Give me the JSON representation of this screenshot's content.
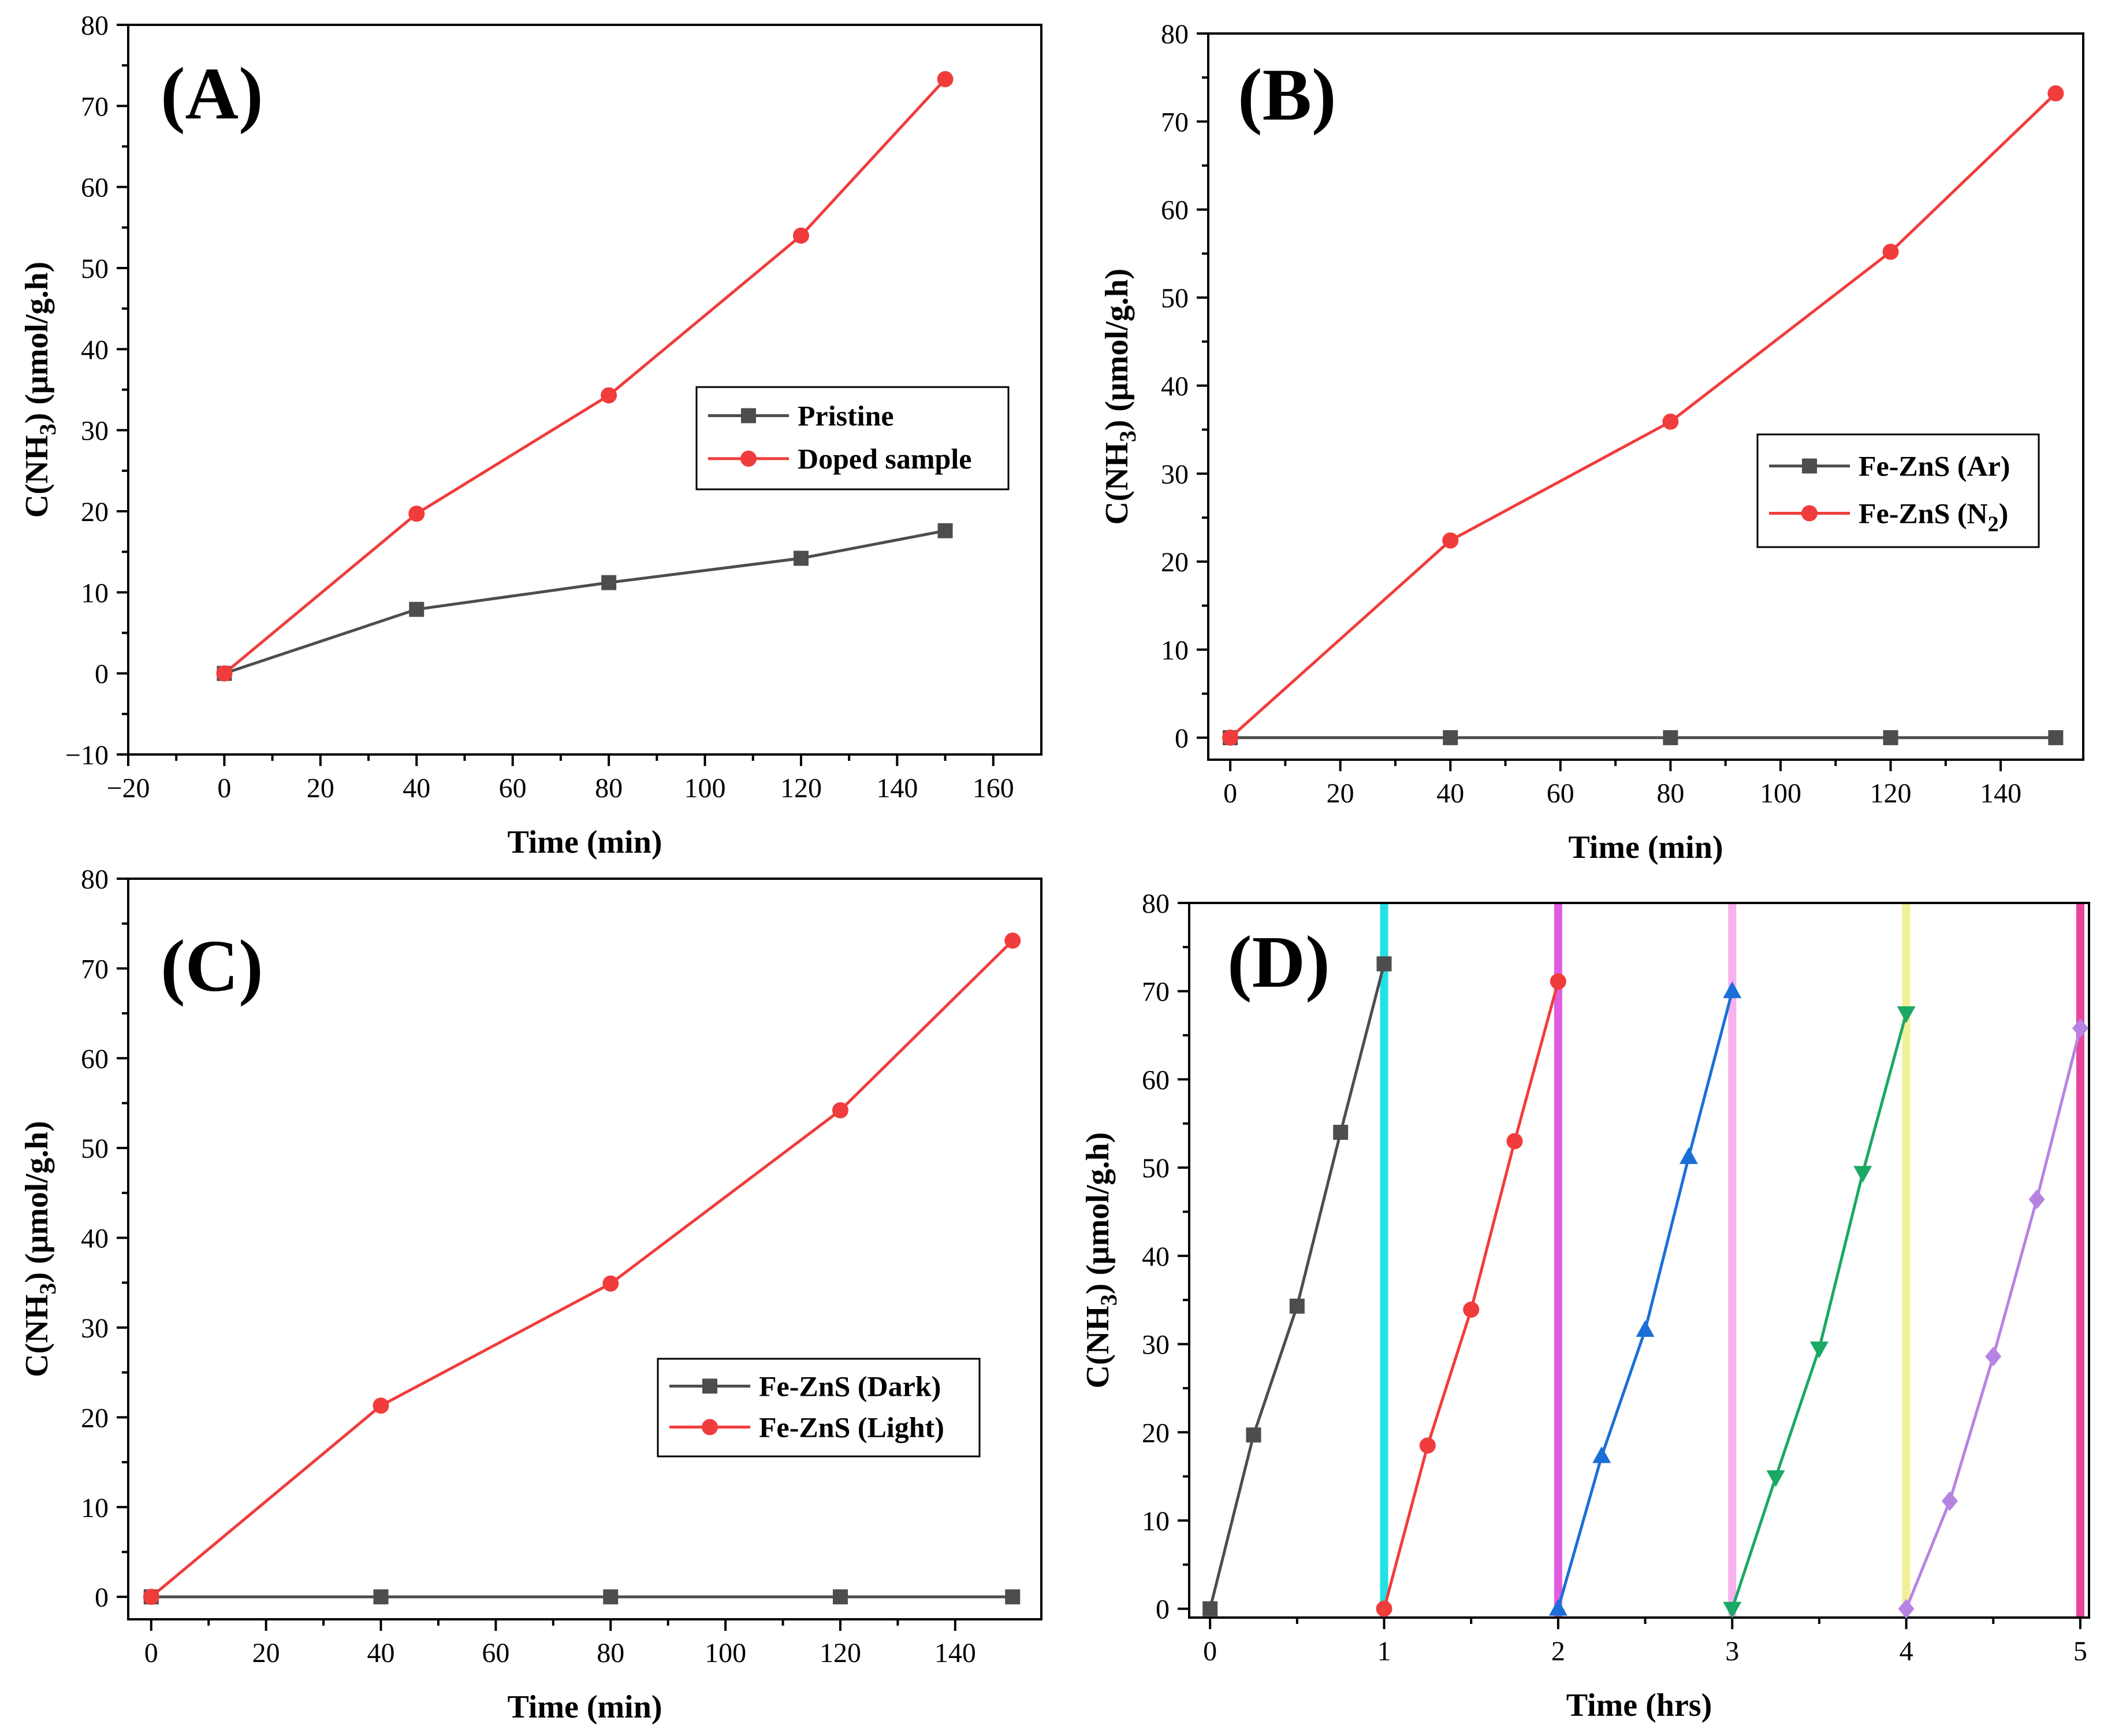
{
  "chart_data": [
    {
      "id": "A",
      "type": "line",
      "panel_label": "(A)",
      "xlabel": "Time (min)",
      "ylabel": "C(NH3) (μmol/g.h)",
      "ylabel_main": "C(NH",
      "ylabel_sub": "3",
      "ylabel_rest": ") (μmol/g.h)",
      "xlim": [
        -20,
        170
      ],
      "ylim": [
        -10,
        80
      ],
      "xticks": [
        -20,
        0,
        20,
        40,
        60,
        80,
        100,
        120,
        140,
        160
      ],
      "xtick_labels": [
        "−20",
        "0",
        "20",
        "40",
        "60",
        "80",
        "100",
        "120",
        "140",
        "160"
      ],
      "yticks": [
        -10,
        0,
        10,
        20,
        30,
        40,
        50,
        60,
        70,
        80
      ],
      "ytick_labels": [
        "−10",
        "0",
        "10",
        "20",
        "30",
        "40",
        "50",
        "60",
        "70",
        "80"
      ],
      "legend_position": "middle-right",
      "series": [
        {
          "name": "Pristine",
          "name_main": "Pristine",
          "name_sub": "",
          "name_rest": "",
          "color": "#4d4d4d",
          "marker": "square",
          "x": [
            0,
            40,
            80,
            120,
            150
          ],
          "y": [
            0,
            7.9,
            11.2,
            14.2,
            17.6
          ]
        },
        {
          "name": "Doped sample",
          "name_main": "Doped sample",
          "name_sub": "",
          "name_rest": "",
          "color": "#f03c3c",
          "marker": "circle",
          "x": [
            0,
            40,
            80,
            120,
            150
          ],
          "y": [
            0,
            19.7,
            34.3,
            54.0,
            73.3
          ]
        }
      ]
    },
    {
      "id": "B",
      "type": "line",
      "panel_label": "(B)",
      "xlabel": "Time (min)",
      "ylabel": "C(NH3) (μmol/g.h)",
      "ylabel_main": "C(NH",
      "ylabel_sub": "3",
      "ylabel_rest": ") (μmol/g.h)",
      "xlim": [
        -4,
        155
      ],
      "ylim": [
        -2.5,
        80
      ],
      "xticks": [
        0,
        20,
        40,
        60,
        80,
        100,
        120,
        140
      ],
      "xtick_labels": [
        "0",
        "20",
        "40",
        "60",
        "80",
        "100",
        "120",
        "140"
      ],
      "yticks": [
        0,
        10,
        20,
        30,
        40,
        50,
        60,
        70,
        80
      ],
      "ytick_labels": [
        "0",
        "10",
        "20",
        "30",
        "40",
        "50",
        "60",
        "70",
        "80"
      ],
      "legend_position": "middle-right",
      "series": [
        {
          "name": "Fe-ZnS (Ar)",
          "name_main": "Fe-ZnS (Ar)",
          "name_sub": "",
          "name_rest": "",
          "color": "#4d4d4d",
          "marker": "square",
          "x": [
            0,
            40,
            80,
            120,
            150
          ],
          "y": [
            0,
            0,
            0,
            0,
            0
          ]
        },
        {
          "name": "Fe-ZnS (N2)",
          "name_main": "Fe-ZnS (N",
          "name_sub": "2",
          "name_rest": ")",
          "color": "#f03c3c",
          "marker": "circle",
          "x": [
            0,
            40,
            80,
            120,
            150
          ],
          "y": [
            0,
            22.4,
            35.9,
            55.2,
            73.2
          ]
        }
      ]
    },
    {
      "id": "C",
      "type": "line",
      "panel_label": "(C)",
      "xlabel": "Time (min)",
      "ylabel": "C(NH3) (μmol/g.h)",
      "ylabel_main": "C(NH",
      "ylabel_sub": "3",
      "ylabel_rest": ") (μmol/g.h)",
      "xlim": [
        -4,
        155
      ],
      "ylim": [
        -2.5,
        80
      ],
      "xticks": [
        0,
        20,
        40,
        60,
        80,
        100,
        120,
        140
      ],
      "xtick_labels": [
        "0",
        "20",
        "40",
        "60",
        "80",
        "100",
        "120",
        "140"
      ],
      "yticks": [
        0,
        10,
        20,
        30,
        40,
        50,
        60,
        70,
        80
      ],
      "ytick_labels": [
        "0",
        "10",
        "20",
        "30",
        "40",
        "50",
        "60",
        "70",
        "80"
      ],
      "legend_position": "lower-right",
      "series": [
        {
          "name": "Fe-ZnS (Dark)",
          "name_main": "Fe-ZnS (Dark)",
          "name_sub": "",
          "name_rest": "",
          "color": "#4d4d4d",
          "marker": "square",
          "x": [
            0,
            40,
            80,
            120,
            150
          ],
          "y": [
            0,
            0,
            0,
            0,
            0
          ]
        },
        {
          "name": "Fe-ZnS (Light)",
          "name_main": "Fe-ZnS (Light)",
          "name_sub": "",
          "name_rest": "",
          "color": "#f03c3c",
          "marker": "circle",
          "x": [
            0,
            40,
            80,
            120,
            150
          ],
          "y": [
            0,
            21.3,
            34.9,
            54.2,
            73.1
          ]
        }
      ]
    },
    {
      "id": "D",
      "type": "line",
      "panel_label": "(D)",
      "xlabel": "Time (hrs)",
      "ylabel": "C(NH3) (μmol/g.h)",
      "ylabel_main": "C(NH",
      "ylabel_sub": "3",
      "ylabel_rest": ") (μmol/g.h)",
      "xlim": [
        -0.12,
        5.05
      ],
      "ylim": [
        -1,
        80
      ],
      "xticks": [
        0,
        1,
        2,
        3,
        4,
        5
      ],
      "xtick_labels": [
        "0",
        "1",
        "2",
        "3",
        "4",
        "5"
      ],
      "yticks": [
        0,
        10,
        20,
        30,
        40,
        50,
        60,
        70,
        80
      ],
      "ytick_labels": [
        "0",
        "10",
        "20",
        "30",
        "40",
        "50",
        "60",
        "70",
        "80"
      ],
      "vlines": [
        {
          "x": 1,
          "color": "#22e1e6"
        },
        {
          "x": 2,
          "color": "#e05ce0"
        },
        {
          "x": 3,
          "color": "#f7b1ef"
        },
        {
          "x": 4,
          "color": "#f2f097"
        },
        {
          "x": 5,
          "color": "#e8439b"
        }
      ],
      "series": [
        {
          "color": "#4d4d4d",
          "marker": "square",
          "x": [
            0,
            0.25,
            0.5,
            0.75,
            1
          ],
          "y": [
            0,
            19.7,
            34.3,
            54.0,
            73.1
          ]
        },
        {
          "color": "#f03c3c",
          "marker": "circle",
          "x": [
            1,
            1.25,
            1.5,
            1.75,
            2
          ],
          "y": [
            0,
            18.5,
            33.9,
            53.0,
            71.1
          ]
        },
        {
          "color": "#1b6fd6",
          "marker": "triangle-up",
          "x": [
            2,
            2.25,
            2.5,
            2.75,
            3
          ],
          "y": [
            0,
            17.3,
            31.6,
            51.2,
            70.0
          ]
        },
        {
          "color": "#1aa865",
          "marker": "triangle-down",
          "x": [
            3,
            3.25,
            3.5,
            3.75,
            4
          ],
          "y": [
            0,
            14.9,
            29.5,
            49.4,
            67.5
          ]
        },
        {
          "color": "#b783e3",
          "marker": "diamond",
          "x": [
            4,
            4.25,
            4.5,
            4.75,
            5
          ],
          "y": [
            0,
            12.2,
            28.6,
            46.4,
            65.8
          ]
        }
      ]
    }
  ]
}
